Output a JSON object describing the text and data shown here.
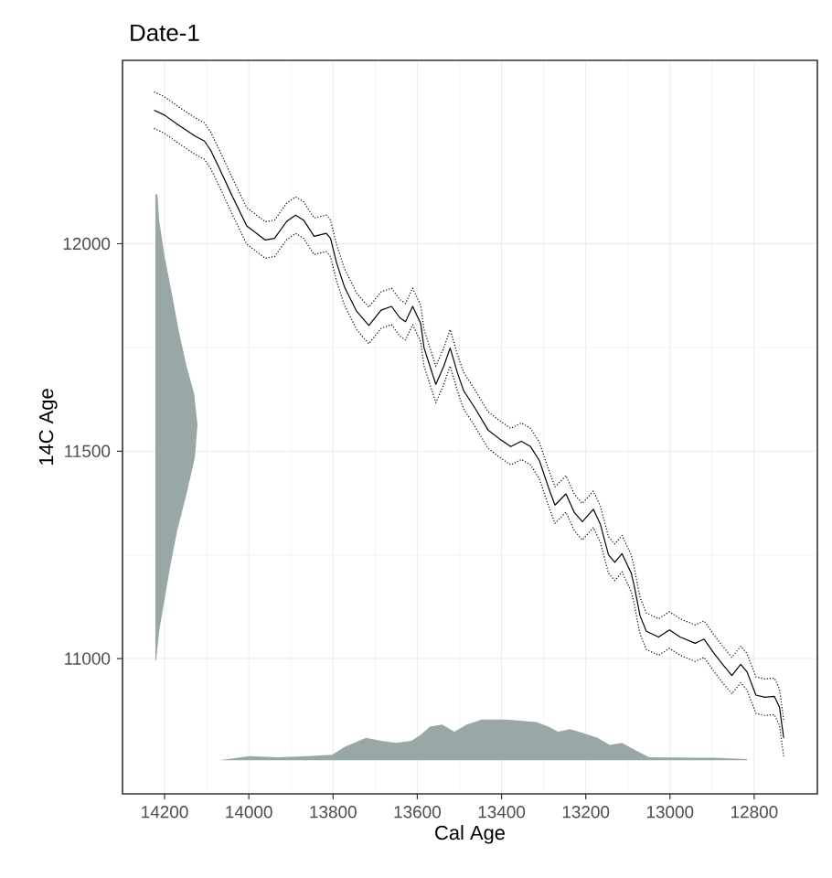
{
  "chart_data": {
    "type": "line",
    "title": "Date-1",
    "xlabel": "Cal Age",
    "ylabel": "14C Age",
    "xlim": [
      14300,
      12650
    ],
    "ylim": [
      10674,
      12442
    ],
    "xticks": [
      14200,
      14000,
      13800,
      13600,
      13400,
      13200,
      13000,
      12800
    ],
    "yticks": [
      11000,
      11500,
      12000
    ],
    "grid": true,
    "marker": "none",
    "series": [
      {
        "type": "area",
        "color": "#99a8a7",
        "x": [
          14222,
          14217,
          14213,
          14200,
          14183,
          14167,
          14148,
          14130,
          14122,
          14128,
          14148,
          14170,
          14187,
          14202,
          14213,
          14220,
          14222
        ],
        "values": [
          12119,
          12119,
          12057,
          11969,
          11881,
          11793,
          11705,
          11639,
          11564,
          11485,
          11397,
          11309,
          11220,
          11132,
          11066,
          10996,
          10996
        ]
      },
      {
        "type": "area",
        "color": "#99a8a7",
        "x": [
          14070,
          13997,
          13932,
          13860,
          13802,
          13773,
          13722,
          13686,
          13650,
          13614,
          13592,
          13570,
          13541,
          13512,
          13483,
          13447,
          13389,
          13317,
          13288,
          13266,
          13237,
          13208,
          13172,
          13143,
          13114,
          13078,
          13049,
          12897,
          12817,
          12817
        ],
        "values": [
          10755,
          10765,
          10762,
          10765,
          10768,
          10787,
          10809,
          10802,
          10797,
          10802,
          10816,
          10836,
          10841,
          10824,
          10841,
          10853,
          10853,
          10847,
          10836,
          10824,
          10830,
          10821,
          10809,
          10792,
          10797,
          10777,
          10762,
          10761,
          10758,
          10755
        ]
      },
      {
        "color": "#000000",
        "line_style": "solid",
        "x": [
          14225,
          14200,
          14171,
          14127,
          14106,
          14091,
          14070,
          14040,
          14005,
          13961,
          13939,
          13910,
          13889,
          13870,
          13845,
          13816,
          13806,
          13792,
          13773,
          13744,
          13715,
          13686,
          13661,
          13642,
          13628,
          13611,
          13592,
          13584,
          13556,
          13537,
          13522,
          13505,
          13490,
          13462,
          13432,
          13404,
          13378,
          13353,
          13331,
          13310,
          13288,
          13273,
          13247,
          13227,
          13208,
          13182,
          13165,
          13146,
          13131,
          13114,
          13092,
          13085,
          13071,
          13056,
          13027,
          13001,
          12976,
          12940,
          12919,
          12897,
          12875,
          12853,
          12832,
          12817,
          12796,
          12774,
          12752,
          12740,
          12730
        ],
        "values": [
          12322,
          12310,
          12289,
          12259,
          12248,
          12226,
          12182,
          12116,
          12043,
          12009,
          12013,
          12054,
          12069,
          12057,
          12018,
          12025,
          12013,
          11955,
          11896,
          11837,
          11803,
          11840,
          11849,
          11822,
          11812,
          11849,
          11808,
          11749,
          11661,
          11705,
          11749,
          11690,
          11646,
          11602,
          11551,
          11529,
          11511,
          11524,
          11511,
          11477,
          11411,
          11370,
          11397,
          11352,
          11330,
          11360,
          11323,
          11250,
          11232,
          11253,
          11206,
          11176,
          11103,
          11066,
          11052,
          11069,
          11052,
          11037,
          11047,
          11015,
          10986,
          10959,
          10986,
          10968,
          10912,
          10907,
          10909,
          10883,
          10809
        ]
      },
      {
        "color": "#000000",
        "line_style": "dotted",
        "x": [
          14225,
          14200,
          14171,
          14127,
          14106,
          14091,
          14070,
          14040,
          14005,
          13961,
          13939,
          13910,
          13889,
          13870,
          13845,
          13816,
          13806,
          13792,
          13773,
          13744,
          13715,
          13686,
          13661,
          13642,
          13628,
          13611,
          13592,
          13584,
          13556,
          13537,
          13522,
          13505,
          13490,
          13462,
          13432,
          13404,
          13378,
          13353,
          13331,
          13310,
          13288,
          13273,
          13247,
          13227,
          13208,
          13182,
          13165,
          13146,
          13131,
          13114,
          13092,
          13085,
          13071,
          13056,
          13027,
          13001,
          12976,
          12940,
          12919,
          12897,
          12875,
          12853,
          12832,
          12817,
          12796,
          12774,
          12752,
          12740,
          12730
        ],
        "values": [
          12366,
          12354,
          12333,
          12303,
          12292,
          12270,
          12226,
          12160,
          12087,
          12053,
          12057,
          12098,
          12113,
          12101,
          12062,
          12069,
          12057,
          11999,
          11940,
          11881,
          11847,
          11884,
          11893,
          11866,
          11856,
          11893,
          11852,
          11793,
          11705,
          11749,
          11793,
          11734,
          11690,
          11646,
          11595,
          11573,
          11555,
          11568,
          11555,
          11521,
          11455,
          11414,
          11441,
          11396,
          11374,
          11404,
          11367,
          11294,
          11276,
          11297,
          11250,
          11220,
          11147,
          11110,
          11096,
          11113,
          11096,
          11081,
          11091,
          11059,
          11030,
          11003,
          11030,
          11012,
          10956,
          10951,
          10953,
          10927,
          10853
        ]
      },
      {
        "color": "#000000",
        "line_style": "dotted",
        "x": [
          14225,
          14200,
          14171,
          14127,
          14106,
          14091,
          14070,
          14040,
          14005,
          13961,
          13939,
          13910,
          13889,
          13870,
          13845,
          13816,
          13806,
          13792,
          13773,
          13744,
          13715,
          13686,
          13661,
          13642,
          13628,
          13611,
          13592,
          13584,
          13556,
          13537,
          13522,
          13505,
          13490,
          13462,
          13432,
          13404,
          13378,
          13353,
          13331,
          13310,
          13288,
          13273,
          13247,
          13227,
          13208,
          13182,
          13165,
          13146,
          13131,
          13114,
          13092,
          13085,
          13071,
          13056,
          13027,
          13001,
          12976,
          12940,
          12919,
          12897,
          12875,
          12853,
          12832,
          12817,
          12796,
          12774,
          12752,
          12740,
          12730
        ],
        "values": [
          12278,
          12266,
          12245,
          12215,
          12204,
          12182,
          12138,
          12072,
          11999,
          11965,
          11969,
          12010,
          12025,
          12013,
          11974,
          11981,
          11969,
          11911,
          11852,
          11793,
          11759,
          11796,
          11805,
          11778,
          11768,
          11805,
          11764,
          11705,
          11617,
          11661,
          11705,
          11646,
          11602,
          11558,
          11507,
          11485,
          11467,
          11480,
          11467,
          11433,
          11367,
          11326,
          11353,
          11308,
          11286,
          11316,
          11279,
          11206,
          11188,
          11209,
          11162,
          11132,
          11059,
          11022,
          11008,
          11025,
          11008,
          10993,
          11003,
          10971,
          10942,
          10915,
          10942,
          10924,
          10868,
          10863,
          10865,
          10839,
          10765
        ]
      }
    ]
  }
}
